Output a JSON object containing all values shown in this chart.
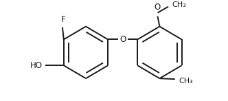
{
  "bg_color": "#ffffff",
  "bond_color": "#1a1a1a",
  "bond_lw": 1.4,
  "font_size": 8.5,
  "figsize": [
    3.32,
    1.47
  ],
  "dpi": 100,
  "xlim": [
    -10,
    330
  ],
  "ylim": [
    0,
    147
  ]
}
